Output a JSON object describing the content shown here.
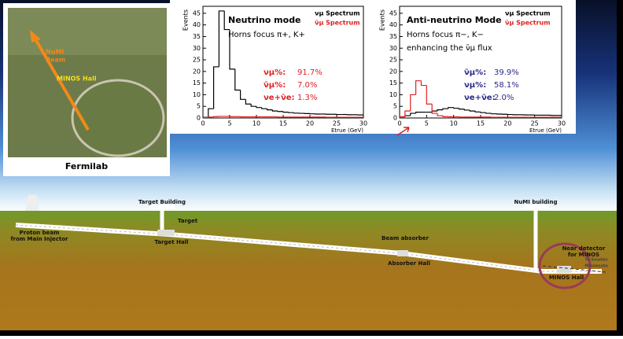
{
  "chart_data": [
    {
      "type": "histogram",
      "title": "Neutrino mode",
      "subtitle": "Horns focus π+, K+",
      "x_label": "Etrue (GeV)",
      "y_label": "Events",
      "bins": [
        0,
        1,
        2,
        3,
        4,
        5,
        6,
        7,
        8,
        9,
        10,
        11,
        12,
        13,
        14,
        15,
        16,
        17,
        18,
        19,
        20,
        21,
        22,
        23,
        24,
        25,
        26,
        27,
        28,
        29,
        30
      ],
      "series": [
        {
          "name": "νμ Spectrum",
          "color": "#000000",
          "values": [
            0.3,
            4,
            22,
            46,
            38,
            21,
            12,
            8,
            6,
            5,
            4.5,
            4,
            3.5,
            3,
            2.8,
            2.5,
            2.3,
            2.1,
            2,
            1.9,
            1.8,
            1.7,
            1.7,
            1.6,
            1.6,
            1.5,
            1.5,
            1.4,
            1.4,
            1.3
          ]
        },
        {
          "name": "ν̄μ Spectrum",
          "color": "#e02020",
          "values": [
            0.2,
            0.4,
            0.6,
            0.7,
            0.7,
            0.6,
            0.6,
            0.5,
            0.5,
            0.5,
            0.5,
            0.5,
            0.5,
            0.5,
            0.4,
            0.4,
            0.4,
            0.4,
            0.4,
            0.4,
            0.4,
            0.4,
            0.4,
            0.3,
            0.3,
            0.3,
            0.3,
            0.3,
            0.3,
            0.3
          ]
        }
      ],
      "annotations": [
        {
          "label": "νμ%:",
          "text": "91.7%",
          "color": "#e02020"
        },
        {
          "label": "ν̄μ%:",
          "text": "7.0%",
          "color": "#e02020"
        },
        {
          "label": "νe+ν̄e:",
          "text": "1.3%",
          "color": "#e02020"
        }
      ],
      "xlim": [
        0,
        30
      ],
      "xticks": [
        0,
        5,
        10,
        15,
        20,
        25,
        30
      ],
      "ylim": [
        0,
        48
      ],
      "yticks": [
        0,
        5,
        10,
        15,
        20,
        25,
        30,
        35,
        40,
        45
      ]
    },
    {
      "type": "histogram",
      "title": "Anti-neutrino Mode",
      "subtitle": "Horns focus π−, K−",
      "note": "enhancing the ν̄μ flux",
      "x_label": "Etrue (GeV)",
      "y_label": "Events",
      "bins": [
        0,
        1,
        2,
        3,
        4,
        5,
        6,
        7,
        8,
        9,
        10,
        11,
        12,
        13,
        14,
        15,
        16,
        17,
        18,
        19,
        20,
        21,
        22,
        23,
        24,
        25,
        26,
        27,
        28,
        29,
        30
      ],
      "series": [
        {
          "name": "νμ Spectrum",
          "color": "#000000",
          "values": [
            0.5,
            1,
            2,
            2.5,
            2.5,
            2.5,
            3,
            3.5,
            4,
            4.5,
            4.2,
            3.8,
            3.4,
            3,
            2.6,
            2.3,
            2,
            1.8,
            1.7,
            1.6,
            1.5,
            1.4,
            1.4,
            1.3,
            1.3,
            1.2,
            1.2,
            1.2,
            1.1,
            1.1
          ]
        },
        {
          "name": "ν̄μ Spectrum",
          "color": "#e02020",
          "values": [
            0.5,
            3,
            10,
            16,
            14,
            6,
            2,
            1,
            0.6,
            0.5,
            0.5,
            0.4,
            0.4,
            0.4,
            0.4,
            0.4,
            0.4,
            0.3,
            0.3,
            0.3,
            0.3,
            0.3,
            0.3,
            0.3,
            0.3,
            0.3,
            0.3,
            0.3,
            0.3,
            0.3
          ]
        }
      ],
      "annotations": [
        {
          "label": "ν̄μ%:",
          "text": "39.9%",
          "color": "#2a2a8a"
        },
        {
          "label": "νμ%:",
          "text": "58.1%",
          "color": "#2a2a8a"
        },
        {
          "label": "νe+ν̄e:",
          "text": "2.0%",
          "color": "#2a2a8a"
        }
      ],
      "xlim": [
        0,
        30
      ],
      "xticks": [
        0,
        5,
        10,
        15,
        20,
        25,
        30
      ],
      "ylim": [
        0,
        48
      ],
      "yticks": [
        0,
        5,
        10,
        15,
        20,
        25,
        30,
        35,
        40,
        45
      ]
    }
  ],
  "photo": {
    "caption": "Fermilab",
    "beam_label": [
      "NuMI",
      "Beam"
    ],
    "hall_label": "MINOS Hall"
  },
  "diagram": {
    "labels": [
      [
        "Target Building"
      ],
      [
        "Target"
      ],
      [
        "Target Hall"
      ],
      [
        "Proton beam",
        "from Main Injector"
      ],
      [
        "Beam absorber"
      ],
      [
        "Absorber Hall"
      ],
      [
        "NuMI building"
      ],
      [
        "Near detector",
        "for MINOS"
      ],
      [
        "MINOS Hall"
      ],
      [
        "To Soudan",
        "Minnesota"
      ]
    ]
  }
}
